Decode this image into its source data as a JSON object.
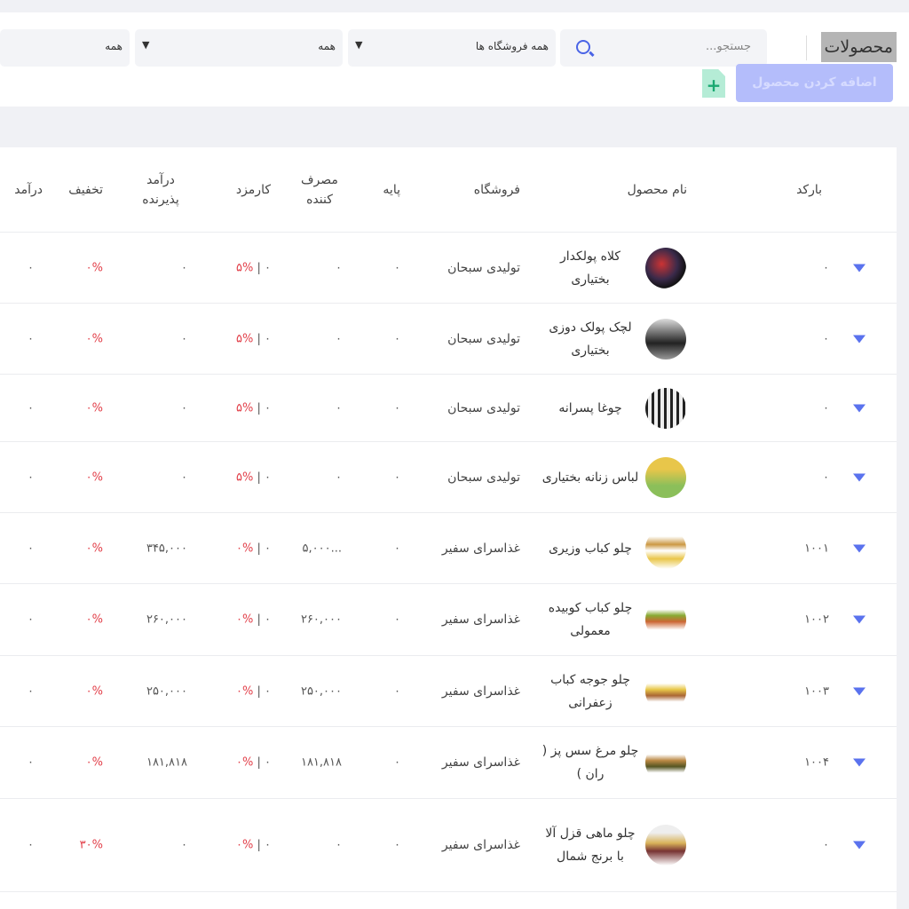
{
  "header": {
    "title": "محصولات",
    "search_placeholder": "جستجو...",
    "filter_store": "همه فروشگاه ها",
    "filter_2": "همه",
    "filter_3": "همه",
    "add_button": "اضافه کردن محصول"
  },
  "accent": "#4a64e6",
  "columns": {
    "barcode": "بارکد",
    "name": "نام محصول",
    "store": "فروشگاه",
    "base": "پایه",
    "consumer": "مصرف کننده",
    "fee": "کارمزد",
    "receiver_income": "درآمد پذیرنده",
    "discount": "تخفیف",
    "income": "درآمد"
  },
  "rows": [
    {
      "barcode": "۰",
      "name": "کلاه پولکدار بختیاری",
      "store": "تولیدی سبحان",
      "base": "۰",
      "consumer": "۰",
      "fee": "۰",
      "fee_pct": "۵%",
      "receiver": "۰",
      "discount": "۰%",
      "income": "۰"
    },
    {
      "barcode": "۰",
      "name": "لچک پولک دوزی بختیاری",
      "store": "تولیدی سبحان",
      "base": "۰",
      "consumer": "۰",
      "fee": "۰",
      "fee_pct": "۵%",
      "receiver": "۰",
      "discount": "۰%",
      "income": "۰"
    },
    {
      "barcode": "۰",
      "name": "چوغا پسرانه",
      "store": "تولیدی سبحان",
      "base": "۰",
      "consumer": "۰",
      "fee": "۰",
      "fee_pct": "۵%",
      "receiver": "۰",
      "discount": "۰%",
      "income": "۰"
    },
    {
      "barcode": "۰",
      "name": "لباس زنانه بختیاری",
      "store": "تولیدی سبحان",
      "base": "۰",
      "consumer": "۰",
      "fee": "۰",
      "fee_pct": "۵%",
      "receiver": "۰",
      "discount": "۰%",
      "income": "۰"
    },
    {
      "barcode": "۱۰۰۱",
      "name": "چلو کباب وزیری",
      "store": "غذاسرای سفیر",
      "base": "۰",
      "consumer": "...۵,۰۰۰",
      "fee": "۰",
      "fee_pct": "۰%",
      "receiver": "۳۴۵,۰۰۰",
      "discount": "۰%",
      "income": "۰"
    },
    {
      "barcode": "۱۰۰۲",
      "name": "چلو کباب کوبیده معمولی",
      "store": "غذاسرای سفیر",
      "base": "۰",
      "consumer": "۲۶۰,۰۰۰",
      "fee": "۰",
      "fee_pct": "۰%",
      "receiver": "۲۶۰,۰۰۰",
      "discount": "۰%",
      "income": "۰"
    },
    {
      "barcode": "۱۰۰۳",
      "name": "چلو جوجه کباب زعفرانی",
      "store": "غذاسرای سفیر",
      "base": "۰",
      "consumer": "۲۵۰,۰۰۰",
      "fee": "۰",
      "fee_pct": "۰%",
      "receiver": "۲۵۰,۰۰۰",
      "discount": "۰%",
      "income": "۰"
    },
    {
      "barcode": "۱۰۰۴",
      "name": "چلو مرغ سس پز ( ران )",
      "store": "غذاسرای سفیر",
      "base": "۰",
      "consumer": "۱۸۱,۸۱۸",
      "fee": "۰",
      "fee_pct": "۰%",
      "receiver": "۱۸۱,۸۱۸",
      "discount": "۰%",
      "income": "۰"
    },
    {
      "barcode": "۰",
      "name": "چلو ماهی قزل آلا با برنج شمال",
      "store": "غذاسرای سفیر",
      "base": "۰",
      "consumer": "۰",
      "fee": "۰",
      "fee_pct": "۰%",
      "receiver": "۰",
      "discount": "۳۰%",
      "income": "۰"
    }
  ]
}
